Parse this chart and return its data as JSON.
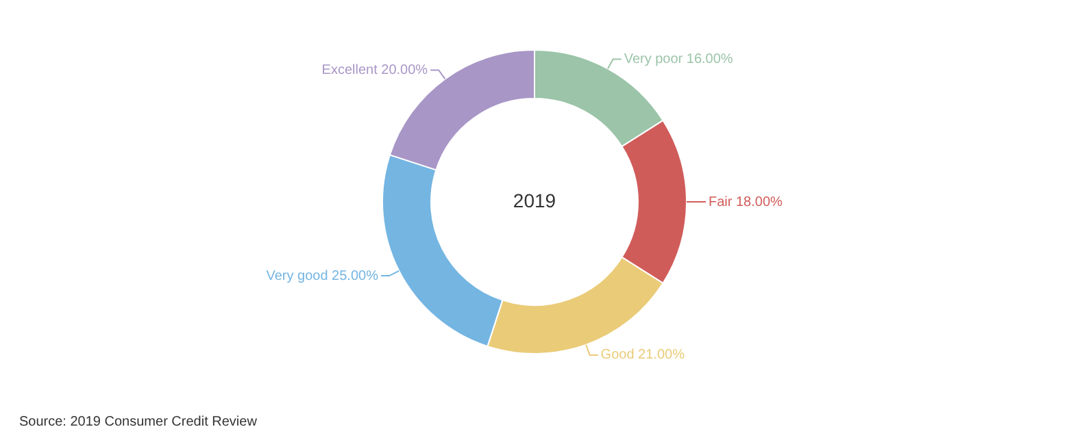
{
  "chart_data": {
    "type": "donut",
    "title": "2019",
    "categories": [
      "Very poor",
      "Fair",
      "Good",
      "Very good",
      "Excellent"
    ],
    "values": [
      16,
      18,
      21,
      25,
      20
    ],
    "value_labels": [
      "16.00%",
      "18.00%",
      "21.00%",
      "25.00%",
      "20.00%"
    ],
    "colors": [
      "#9bc4a8",
      "#d05c5a",
      "#eacb78",
      "#74b5e2",
      "#a896c6"
    ],
    "legend": false,
    "annotations": [
      "Source: 2019 Consumer Credit Review"
    ]
  }
}
